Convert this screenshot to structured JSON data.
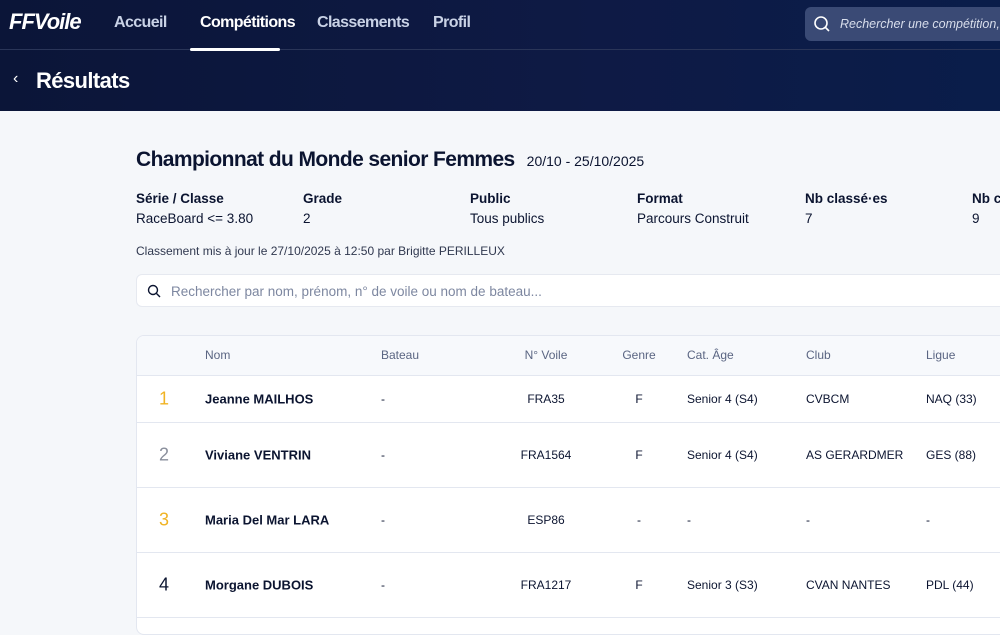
{
  "nav": {
    "logo": "FFVoile",
    "items": [
      {
        "label": "Accueil"
      },
      {
        "label": "Compétitions",
        "active": true
      },
      {
        "label": "Classements"
      },
      {
        "label": "Profil"
      }
    ],
    "search_placeholder": "Rechercher une compétition, u"
  },
  "page": {
    "title": "Résultats"
  },
  "event": {
    "title": "Championnat du Monde senior Femmes",
    "dates": "20/10 - 25/10/2025",
    "meta": [
      {
        "label": "Série / Classe",
        "value": "RaceBoard <= 3.80"
      },
      {
        "label": "Grade",
        "value": "2"
      },
      {
        "label": "Public",
        "value": "Tous publics"
      },
      {
        "label": "Format",
        "value": "Parcours Construit"
      },
      {
        "label": "Nb classé·es",
        "value": "7"
      },
      {
        "label": "Nb c",
        "value": "9"
      }
    ],
    "updated": "Classement mis à jour le 27/10/2025 à 12:50 par Brigitte PERILLEUX"
  },
  "search": {
    "placeholder": "Rechercher par nom, prénom, n° de voile ou nom de bateau..."
  },
  "table": {
    "headers": [
      "Nom",
      "Bateau",
      "N° Voile",
      "Genre",
      "Cat. Âge",
      "Club",
      "Ligue"
    ],
    "rows": [
      {
        "rank": "1",
        "name": "Jeanne MAILHOS",
        "boat": "-",
        "sail": "FRA35",
        "gender": "F",
        "cat": "Senior 4 (S4)",
        "club": "CVBCM",
        "league": "NAQ (33)"
      },
      {
        "rank": "2",
        "name": "Viviane VENTRIN",
        "boat": "-",
        "sail": "FRA1564",
        "gender": "F",
        "cat": "Senior 4 (S4)",
        "club": "AS GERARDMER",
        "league": "GES (88)"
      },
      {
        "rank": "3",
        "name": "Maria Del Mar LARA",
        "boat": "-",
        "sail": "ESP86",
        "gender": "-",
        "cat": "-",
        "club": "-",
        "league": "-"
      },
      {
        "rank": "4",
        "name": "Morgane DUBOIS",
        "boat": "-",
        "sail": "FRA1217",
        "gender": "F",
        "cat": "Senior 3 (S3)",
        "club": "CVAN NANTES",
        "league": "PDL (44)"
      }
    ]
  },
  "colors": {
    "gold": "#f0b323",
    "silver": "#8a8f9c",
    "bronze": "#f0b323",
    "header_bg": "#0b1538"
  }
}
